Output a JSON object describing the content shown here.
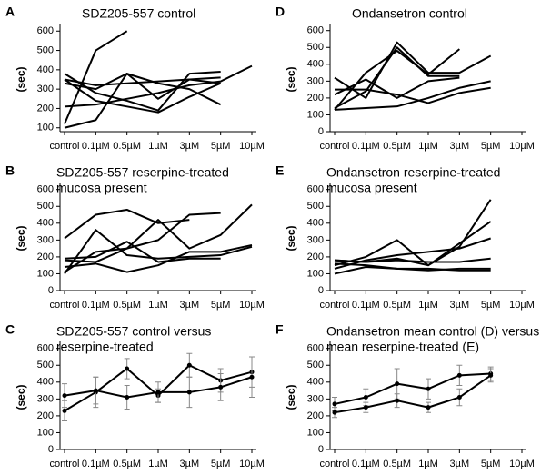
{
  "chart_data": [
    {
      "type": "line",
      "panel": "A",
      "title": "SDZ205-557  control",
      "ylabel": "(sec)",
      "categories": [
        "control",
        "0.1µM",
        "0.5µM",
        "1µM",
        "3µM",
        "5µM",
        "10µM"
      ],
      "ylim": [
        80,
        620
      ],
      "yticks": [
        100,
        200,
        300,
        400,
        500,
        600
      ],
      "series": [
        {
          "color": "#000000",
          "values": [
            120,
            500,
            600,
            null,
            null,
            null,
            null
          ]
        },
        {
          "color": "#000000",
          "values": [
            350,
            320,
            330,
            340,
            350,
            360,
            null
          ]
        },
        {
          "color": "#000000",
          "values": [
            100,
            140,
            380,
            250,
            350,
            330,
            null
          ]
        },
        {
          "color": "#000000",
          "values": [
            210,
            220,
            250,
            280,
            320,
            340,
            420
          ]
        },
        {
          "color": "#000000",
          "values": [
            380,
            280,
            240,
            190,
            380,
            390,
            null
          ]
        },
        {
          "color": "#000000",
          "values": [
            330,
            300,
            380,
            330,
            300,
            220,
            null
          ]
        },
        {
          "color": "#000000",
          "values": [
            350,
            240,
            210,
            180,
            260,
            330,
            null
          ]
        }
      ]
    },
    {
      "type": "line",
      "panel": "B",
      "title": "SDZ205-557  reserpine-treated",
      "subtitle": "mucosa present",
      "ylabel": "(sec)",
      "categories": [
        "control",
        "0.1µM",
        "0.5µM",
        "1µM",
        "3µM",
        "5µM",
        "10µM"
      ],
      "ylim": [
        0,
        620
      ],
      "yticks": [
        0,
        100,
        200,
        300,
        400,
        500,
        600
      ],
      "series": [
        {
          "color": "#000000",
          "values": [
            310,
            450,
            480,
            400,
            420,
            null,
            null
          ]
        },
        {
          "color": "#000000",
          "values": [
            100,
            360,
            210,
            190,
            200,
            210,
            260
          ]
        },
        {
          "color": "#000000",
          "values": [
            180,
            170,
            250,
            300,
            450,
            460,
            null
          ]
        },
        {
          "color": "#000000",
          "values": [
            110,
            230,
            250,
            420,
            250,
            330,
            510
          ]
        },
        {
          "color": "#000000",
          "values": [
            140,
            160,
            110,
            150,
            230,
            230,
            270
          ]
        },
        {
          "color": "#000000",
          "values": [
            190,
            200,
            290,
            170,
            190,
            190,
            null
          ]
        }
      ]
    },
    {
      "type": "errorline",
      "panel": "C",
      "title": "SDZ205-557  control versus",
      "subtitle": "reserpine-treated",
      "ylabel": "(sec)",
      "categories": [
        "control",
        "0.1µM",
        "0.5µM",
        "1µM",
        "3µM",
        "5µM",
        "10µM"
      ],
      "ylim": [
        0,
        620
      ],
      "yticks": [
        0,
        100,
        200,
        300,
        400,
        500,
        600
      ],
      "series": [
        {
          "color": "#000000",
          "values": [
            230,
            340,
            480,
            320,
            500,
            410,
            460
          ],
          "errors": [
            60,
            90,
            60,
            40,
            70,
            70,
            90
          ]
        },
        {
          "color": "#000000",
          "values": [
            320,
            350,
            310,
            340,
            340,
            370,
            430
          ],
          "errors": [
            70,
            80,
            70,
            60,
            90,
            80,
            120
          ]
        }
      ]
    },
    {
      "type": "line",
      "panel": "D",
      "title": "Ondansetron  control",
      "ylabel": "(sec)",
      "categories": [
        "control",
        "0.1µM",
        "0.5µM",
        "1µM",
        "3µM",
        "5µM",
        "10µM"
      ],
      "ylim": [
        0,
        620
      ],
      "yticks": [
        0,
        100,
        200,
        300,
        400,
        500,
        600
      ],
      "series": [
        {
          "color": "#000000",
          "values": [
            320,
            200,
            530,
            350,
            350,
            450,
            null
          ]
        },
        {
          "color": "#000000",
          "values": [
            130,
            350,
            480,
            340,
            490,
            null,
            null
          ]
        },
        {
          "color": "#000000",
          "values": [
            220,
            310,
            200,
            300,
            320,
            null,
            null
          ]
        },
        {
          "color": "#000000",
          "values": [
            130,
            140,
            150,
            200,
            260,
            300,
            null
          ]
        },
        {
          "color": "#000000",
          "values": [
            250,
            250,
            220,
            170,
            230,
            260,
            null
          ]
        },
        {
          "color": "#000000",
          "values": [
            140,
            240,
            500,
            330,
            330,
            null,
            null
          ]
        }
      ]
    },
    {
      "type": "line",
      "panel": "E",
      "title": "Ondansetron  reserpine-treated",
      "subtitle": "mucosa present",
      "ylabel": "(sec)",
      "categories": [
        "control",
        "0.1µM",
        "0.5µM",
        "1µM",
        "3µM",
        "5µM",
        "10µM"
      ],
      "ylim": [
        0,
        620
      ],
      "yticks": [
        0,
        100,
        200,
        300,
        400,
        500,
        600
      ],
      "series": [
        {
          "color": "#000000",
          "values": [
            180,
            170,
            190,
            150,
            260,
            540,
            null
          ]
        },
        {
          "color": "#000000",
          "values": [
            150,
            200,
            300,
            150,
            280,
            410,
            null
          ]
        },
        {
          "color": "#000000",
          "values": [
            130,
            180,
            210,
            230,
            250,
            310,
            null
          ]
        },
        {
          "color": "#000000",
          "values": [
            180,
            170,
            180,
            170,
            170,
            190,
            null
          ]
        },
        {
          "color": "#000000",
          "values": [
            100,
            140,
            130,
            130,
            120,
            120,
            null
          ]
        },
        {
          "color": "#000000",
          "values": [
            160,
            150,
            130,
            120,
            130,
            130,
            null
          ]
        }
      ]
    },
    {
      "type": "errorline",
      "panel": "F",
      "title": "Ondansetron  mean control (D) versus",
      "subtitle": "mean reserpine-treated (E)",
      "ylabel": "(sec)",
      "categories": [
        "control",
        "0.1µM",
        "0.5µM",
        "1µM",
        "3µM",
        "5µM",
        "10µM"
      ],
      "ylim": [
        0,
        620
      ],
      "yticks": [
        0,
        100,
        200,
        300,
        400,
        500,
        600
      ],
      "series": [
        {
          "color": "#000000",
          "values": [
            270,
            310,
            390,
            360,
            440,
            450,
            null
          ],
          "errors": [
            40,
            50,
            90,
            60,
            60,
            40,
            null
          ]
        },
        {
          "color": "#000000",
          "values": [
            220,
            250,
            290,
            250,
            310,
            440,
            null
          ],
          "errors": [
            30,
            30,
            40,
            30,
            50,
            40,
            null
          ]
        }
      ]
    }
  ]
}
